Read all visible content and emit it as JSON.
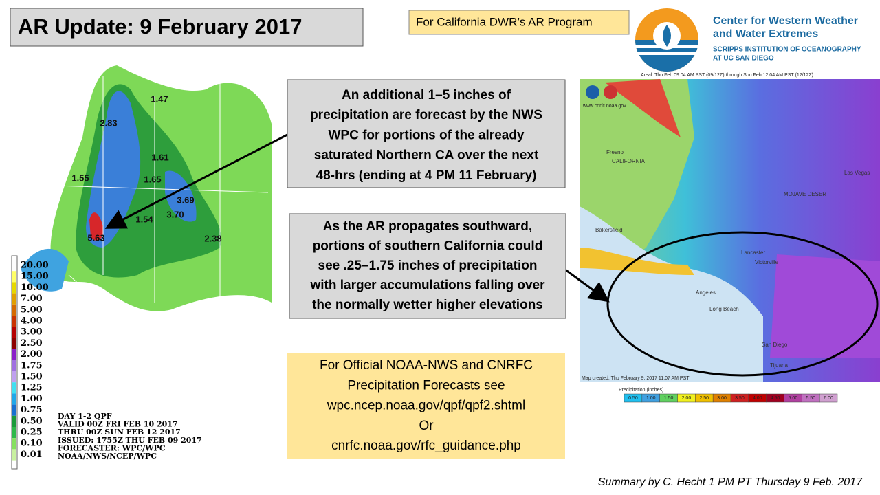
{
  "title": "AR Update: 9 February 2017",
  "program_note": "For California DWR’s AR Program",
  "logo": {
    "name_lines": [
      "Center for Western Weather",
      "and Water Extremes"
    ],
    "institution_lines": [
      "SCRIPPS INSTITUTION OF OCEANOGRAPHY",
      "AT UC SAN DIEGO"
    ]
  },
  "callout_north": [
    "An additional 1–5 inches of",
    "precipitation are forecast by the NWS",
    "WPC for portions of the already",
    "saturated Northern CA over the next",
    "48-hrs (ending at 4 PM 11 February)"
  ],
  "callout_south": [
    "As the AR propagates southward,",
    "portions of southern California could",
    "see .25–1.75 inches of precipitation",
    "with larger accumulations falling over",
    "the normally wetter higher elevations"
  ],
  "official_box": [
    "For Official NOAA-NWS and CNRFC",
    "Precipitation Forecasts see",
    "wpc.ncep.noaa.gov/qpf/qpf2.shtml",
    "Or",
    "cnrfc.noaa.gov/rfc_guidance.php"
  ],
  "footer": "Summary by C. Hecht 1 PM PT Thursday 9 Feb. 2017",
  "left_map": {
    "legend_labels": [
      "20.00",
      "15.00",
      "10.00",
      "7.00",
      "5.00",
      "4.00",
      "3.00",
      "2.50",
      "2.00",
      "1.75",
      "1.50",
      "1.25",
      "1.00",
      "0.75",
      "0.50",
      "0.25",
      "0.10",
      "0.01"
    ],
    "info_lines": [
      "DAY 1-2 QPF",
      "VALID 00Z FRI FEB 10 2017",
      "THRU 00Z SUN FEB 12 2017",
      "ISSUED: 1755Z THU FEB 09 2017",
      "FORECASTER: WPC/WPC",
      "NOAA/NWS/NCEP/WPC"
    ],
    "point_labels": [
      "1.47",
      "2.83",
      "1.61",
      "1.65",
      "1.55",
      "3.69",
      "3.70",
      "1.54",
      "2.38",
      "5.63"
    ]
  },
  "right_map": {
    "header": "Areal: Thu Feb 09 04 AM PST (09/12Z) through Sun Feb 12 04 AM PST (12/12Z)",
    "credit": "www.cnrfc.noaa.gov",
    "map_created": "Map created: Thu February 9, 2017 11:07 AM PST",
    "legend_title": "Precipitation (inches)",
    "legend_labels": [
      "0.50",
      "1.00",
      "1.50",
      "2.00",
      "2.50",
      "3.00",
      "3.50",
      "4.00",
      "4.50",
      "5.00",
      "5.50",
      "6.00"
    ],
    "places": [
      "CALIFORNIA",
      "Fresno",
      "Las Vegas",
      "MOJAVE DESERT",
      "Bakersfield",
      "Lancaster",
      "Victorville",
      "Angeles",
      "Long Beach",
      "San Diego",
      "Tijuana"
    ]
  }
}
